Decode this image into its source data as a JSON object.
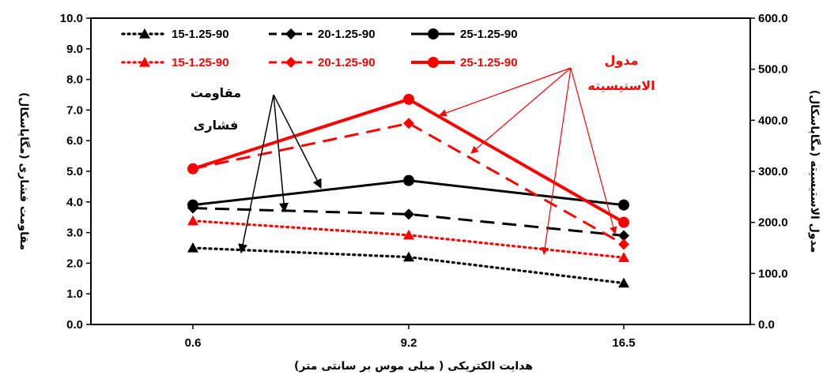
{
  "chart_data": {
    "type": "line",
    "categories": [
      "0.6",
      "9.2",
      "16.5"
    ],
    "xlabel": "هدایت الکتریکی ( میلی موس بر سانتی متر)",
    "ylabel_left": "مقاومت فشاری (مگاپاسکال)",
    "ylabel_right": "مدول الاستیسیته (مگاپاسکال)",
    "ylim_left": [
      0,
      10
    ],
    "ylim_right": [
      0,
      600
    ],
    "yticks_left": [
      "0.0",
      "1.0",
      "2.0",
      "3.0",
      "4.0",
      "5.0",
      "6.0",
      "7.0",
      "8.0",
      "9.0",
      "10.0"
    ],
    "yticks_right": [
      "0.0",
      "100.0",
      "200.0",
      "300.0",
      "400.0",
      "500.0",
      "600.0"
    ],
    "grid": false,
    "legend_position": "top",
    "series": [
      {
        "name": "15-1.25-90",
        "axis": "left",
        "color": "#000000",
        "style": "dotted",
        "marker": "triangle",
        "values": [
          2.5,
          2.2,
          1.35
        ]
      },
      {
        "name": "20-1.25-90",
        "axis": "left",
        "color": "#000000",
        "style": "dashed",
        "marker": "diamond",
        "values": [
          3.8,
          3.6,
          2.9
        ]
      },
      {
        "name": "25-1.25-90",
        "axis": "left",
        "color": "#000000",
        "style": "solid",
        "marker": "circle",
        "values": [
          3.9,
          4.7,
          3.9
        ]
      },
      {
        "name": "15-1.25-90",
        "axis": "right",
        "color": "#ff0000",
        "style": "dotted",
        "marker": "triangle",
        "values": [
          203,
          175,
          131
        ]
      },
      {
        "name": "20-1.25-90",
        "axis": "right",
        "color": "#ff0000",
        "style": "dashed",
        "marker": "diamond",
        "values": [
          305,
          394,
          157
        ]
      },
      {
        "name": "25-1.25-90",
        "axis": "right",
        "color": "#ff0000",
        "style": "solid",
        "marker": "circle",
        "values": [
          305,
          441,
          200
        ]
      }
    ],
    "annotations": [
      {
        "lines": [
          "مقاومت",
          "فشاری"
        ],
        "color": "#000000"
      },
      {
        "lines": [
          "مدول",
          "الاستیسیته"
        ],
        "color": "#ff0000"
      }
    ]
  }
}
